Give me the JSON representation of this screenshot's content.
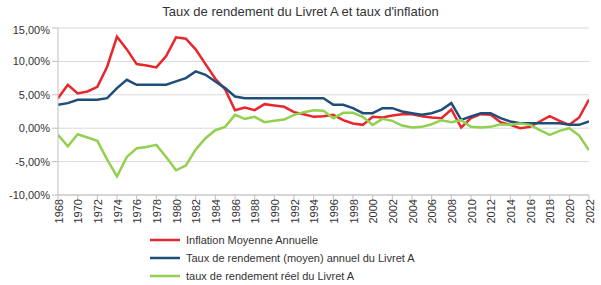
{
  "chart_data": {
    "type": "line",
    "title": "Taux de rendement  du Livret A et taux d'inflation",
    "x": [
      1968,
      1969,
      1970,
      1971,
      1972,
      1973,
      1974,
      1975,
      1976,
      1977,
      1978,
      1979,
      1980,
      1981,
      1982,
      1983,
      1984,
      1985,
      1986,
      1987,
      1988,
      1989,
      1990,
      1991,
      1992,
      1993,
      1994,
      1995,
      1996,
      1997,
      1998,
      1999,
      2000,
      2001,
      2002,
      2003,
      2004,
      2005,
      2006,
      2007,
      2008,
      2009,
      2010,
      2011,
      2012,
      2013,
      2014,
      2015,
      2016,
      2017,
      2018,
      2019,
      2020,
      2021,
      2022
    ],
    "xlim": [
      1968,
      2022
    ],
    "xticks": [
      1968,
      1970,
      1972,
      1974,
      1976,
      1978,
      1980,
      1982,
      1984,
      1986,
      1988,
      1990,
      1992,
      1994,
      1996,
      1998,
      2000,
      2002,
      2004,
      2006,
      2008,
      2010,
      2012,
      2014,
      2016,
      2018,
      2020,
      2022
    ],
    "ylim": [
      -10,
      15
    ],
    "yticks": [
      {
        "value": -10,
        "label": "-10,00%"
      },
      {
        "value": -5,
        "label": "-5,00%"
      },
      {
        "value": 0,
        "label": "0,00%"
      },
      {
        "value": 5,
        "label": "5,00%"
      },
      {
        "value": 10,
        "label": "10,00%"
      },
      {
        "value": 15,
        "label": "15,00%"
      }
    ],
    "grid": true,
    "legend": "bottom",
    "series": [
      {
        "name": "Inflation Moyenne Annuelle",
        "color": "#e8262b",
        "values": [
          4.5,
          6.5,
          5.2,
          5.5,
          6.2,
          9.2,
          13.7,
          11.8,
          9.6,
          9.4,
          9.1,
          10.8,
          13.6,
          13.4,
          11.8,
          9.6,
          7.4,
          5.8,
          2.7,
          3.1,
          2.7,
          3.6,
          3.4,
          3.2,
          2.4,
          2.1,
          1.7,
          1.8,
          2.0,
          1.2,
          0.7,
          0.5,
          1.7,
          1.6,
          1.9,
          2.1,
          2.1,
          1.8,
          1.6,
          1.5,
          2.8,
          0.1,
          1.5,
          2.1,
          2.0,
          0.9,
          0.5,
          0.0,
          0.2,
          1.0,
          1.8,
          1.1,
          0.5,
          1.6,
          4.3
        ]
      },
      {
        "name": "Taux de rendement (moyen) annuel du Livret A",
        "color": "#1f4e79",
        "values": [
          3.5,
          3.75,
          4.25,
          4.25,
          4.25,
          4.5,
          6.0,
          7.25,
          6.5,
          6.5,
          6.5,
          6.5,
          7.0,
          7.5,
          8.5,
          8.0,
          7.0,
          6.0,
          4.75,
          4.5,
          4.5,
          4.5,
          4.5,
          4.5,
          4.5,
          4.5,
          4.5,
          4.5,
          3.5,
          3.5,
          3.0,
          2.25,
          2.25,
          3.0,
          3.0,
          2.5,
          2.25,
          2.0,
          2.25,
          2.75,
          3.75,
          1.25,
          1.75,
          2.25,
          2.25,
          1.5,
          1.0,
          0.75,
          0.75,
          0.75,
          0.75,
          0.75,
          0.5,
          0.5,
          1.0
        ]
      },
      {
        "name": "taux de rendement réel du Livret A",
        "color": "#92d050",
        "values": [
          -1.0,
          -2.7,
          -0.9,
          -1.4,
          -1.9,
          -4.7,
          -7.2,
          -4.3,
          -3.0,
          -2.8,
          -2.5,
          -4.3,
          -6.3,
          -5.6,
          -3.2,
          -1.5,
          -0.3,
          0.2,
          2.0,
          1.4,
          1.7,
          0.9,
          1.1,
          1.3,
          2.0,
          2.4,
          2.7,
          2.6,
          1.5,
          2.3,
          2.3,
          1.7,
          0.5,
          1.4,
          1.1,
          0.4,
          0.1,
          0.2,
          0.6,
          1.2,
          0.9,
          1.2,
          0.2,
          0.1,
          0.2,
          0.6,
          0.5,
          0.7,
          0.5,
          -0.3,
          -1.0,
          -0.4,
          0.0,
          -1.1,
          -3.3
        ]
      }
    ]
  }
}
